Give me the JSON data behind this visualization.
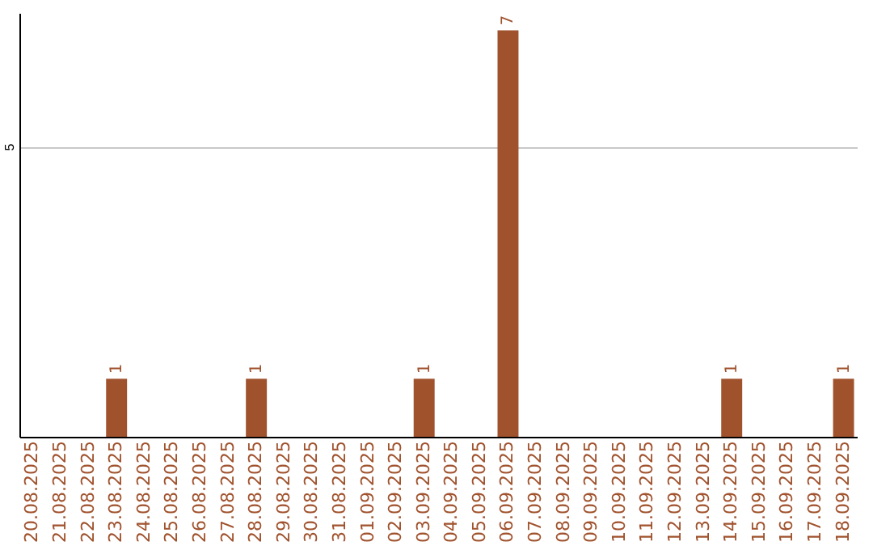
{
  "chart_data": {
    "type": "bar",
    "categories": [
      "20.08.2025",
      "21.08.2025",
      "22.08.2025",
      "23.08.2025",
      "24.08.2025",
      "25.08.2025",
      "26.08.2025",
      "27.08.2025",
      "28.08.2025",
      "29.08.2025",
      "30.08.2025",
      "31.08.2025",
      "01.09.2025",
      "02.09.2025",
      "03.09.2025",
      "04.09.2025",
      "05.09.2025",
      "06.09.2025",
      "07.09.2025",
      "08.09.2025",
      "09.09.2025",
      "10.09.2025",
      "11.09.2025",
      "12.09.2025",
      "13.09.2025",
      "14.09.2025",
      "15.09.2025",
      "16.09.2025",
      "17.09.2025",
      "18.09.2025"
    ],
    "values": [
      0,
      0,
      0,
      1,
      0,
      0,
      0,
      0,
      1,
      0,
      0,
      0,
      0,
      0,
      1,
      0,
      0,
      7,
      0,
      0,
      0,
      0,
      0,
      0,
      0,
      1,
      0,
      0,
      0,
      1
    ],
    "color": "#a0522d",
    "value_labels": [
      null,
      null,
      null,
      "1",
      null,
      null,
      null,
      null,
      "1",
      null,
      null,
      null,
      null,
      null,
      "1",
      null,
      null,
      "7",
      null,
      null,
      null,
      null,
      null,
      null,
      null,
      "1",
      null,
      null,
      null,
      "1"
    ],
    "ylim": [
      0,
      7.3
    ],
    "yticks": [
      5
    ],
    "grid": "y"
  }
}
